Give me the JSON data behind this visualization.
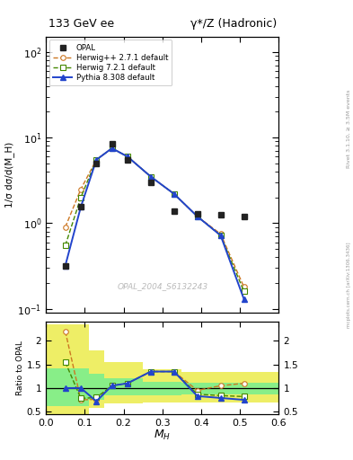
{
  "title_left": "133 GeV ee",
  "title_right": "γ*/Z (Hadronic)",
  "right_label1": "Rivet 3.1.10, ≥ 3.5M events",
  "right_label2": "mcplots.cern.ch [arXiv:1306.3436]",
  "watermark": "OPAL_2004_S6132243",
  "ylabel_main": "1/σ dσ/d(M_H)",
  "ylabel_ratio": "Ratio to OPAL",
  "xlabel": "M_H",
  "opal_x": [
    0.05,
    0.09,
    0.13,
    0.17,
    0.21,
    0.27,
    0.33,
    0.39,
    0.45,
    0.51
  ],
  "opal_y": [
    0.32,
    1.55,
    5.0,
    8.5,
    5.5,
    3.0,
    1.4,
    1.3,
    1.25,
    1.2
  ],
  "herwig_x": [
    0.05,
    0.09,
    0.13,
    0.17,
    0.21,
    0.27,
    0.33,
    0.39,
    0.45,
    0.51
  ],
  "herwig_y": [
    0.9,
    2.5,
    5.5,
    7.5,
    6.0,
    3.5,
    2.2,
    1.2,
    0.75,
    0.18
  ],
  "herwig2_x": [
    0.05,
    0.09,
    0.13,
    0.17,
    0.21,
    0.27,
    0.33,
    0.39,
    0.45,
    0.51
  ],
  "herwig2_y": [
    0.55,
    2.0,
    5.5,
    7.5,
    6.0,
    3.5,
    2.2,
    1.2,
    0.72,
    0.16
  ],
  "pythia_x": [
    0.05,
    0.09,
    0.13,
    0.17,
    0.21,
    0.27,
    0.33,
    0.39,
    0.45,
    0.51
  ],
  "pythia_y": [
    0.32,
    1.55,
    5.5,
    7.5,
    6.0,
    3.5,
    2.2,
    1.2,
    0.72,
    0.13
  ],
  "ratio_herwig_x": [
    0.05,
    0.09,
    0.13,
    0.17,
    0.21,
    0.27,
    0.33,
    0.39,
    0.45,
    0.51
  ],
  "ratio_herwig_y": [
    2.2,
    0.75,
    0.76,
    1.05,
    1.1,
    1.35,
    1.35,
    0.95,
    1.05,
    1.1
  ],
  "ratio_herwig2_x": [
    0.05,
    0.09,
    0.13,
    0.17,
    0.21,
    0.27,
    0.33,
    0.39,
    0.45,
    0.51
  ],
  "ratio_herwig2_y": [
    1.55,
    0.78,
    0.8,
    1.05,
    1.1,
    1.35,
    1.35,
    0.87,
    0.84,
    0.82
  ],
  "ratio_pythia_x": [
    0.05,
    0.09,
    0.13,
    0.17,
    0.21,
    0.27,
    0.33,
    0.39,
    0.45,
    0.51
  ],
  "ratio_pythia_y": [
    1.0,
    1.0,
    0.72,
    1.05,
    1.1,
    1.35,
    1.35,
    0.83,
    0.79,
    0.75
  ],
  "band_x_edges": [
    0.0,
    0.07,
    0.11,
    0.15,
    0.25,
    0.35,
    0.6
  ],
  "band_yellow_lo": [
    0.42,
    0.42,
    0.58,
    0.68,
    0.7,
    0.7,
    0.7
  ],
  "band_yellow_hi": [
    2.35,
    2.35,
    1.8,
    1.55,
    1.4,
    1.35,
    1.35
  ],
  "band_green_lo": [
    0.62,
    0.62,
    0.75,
    0.84,
    0.85,
    0.86,
    0.86
  ],
  "band_green_hi": [
    1.42,
    1.42,
    1.3,
    1.2,
    1.14,
    1.12,
    1.12
  ],
  "color_opal": "#222222",
  "color_herwig": "#cc7722",
  "color_herwig2": "#448800",
  "color_pythia": "#2244cc",
  "color_yellow": "#eeee66",
  "color_green": "#88ee88",
  "ylim_main": [
    0.09,
    150
  ],
  "ylim_ratio": [
    0.45,
    2.4
  ],
  "xlim": [
    0.0,
    0.6
  ]
}
